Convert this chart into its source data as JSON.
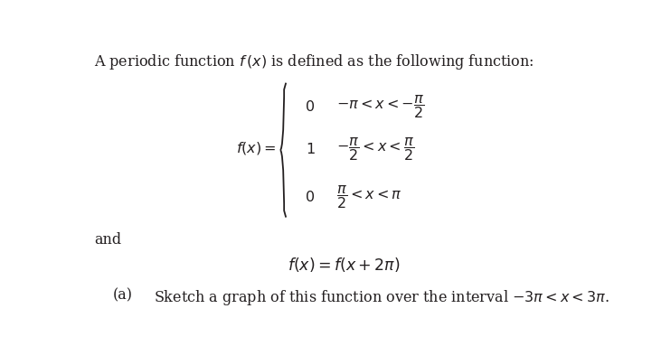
{
  "bg_color": "#ffffff",
  "text_color": "#231f20",
  "title_line": "A periodic function $f\\,(x)$ is defined as the following function:",
  "fx_label": "$f(x)=$",
  "brace_cases": [
    [
      "$0$",
      "$-\\pi < x < -\\dfrac{\\pi}{2}$"
    ],
    [
      "$1$",
      "$-\\dfrac{\\pi}{2} < x < \\dfrac{\\pi}{2}$"
    ],
    [
      "$0$",
      "$\\dfrac{\\pi}{2} < x < \\pi$"
    ]
  ],
  "and_label": "and",
  "periodicity": "$f(x) = f(x + 2\\pi)$",
  "part_a": "(a)",
  "part_a_text": "Sketch a graph of this function over the interval $-3\\pi < x < 3\\pi$.",
  "figsize": [
    7.42,
    3.83
  ],
  "dpi": 100
}
